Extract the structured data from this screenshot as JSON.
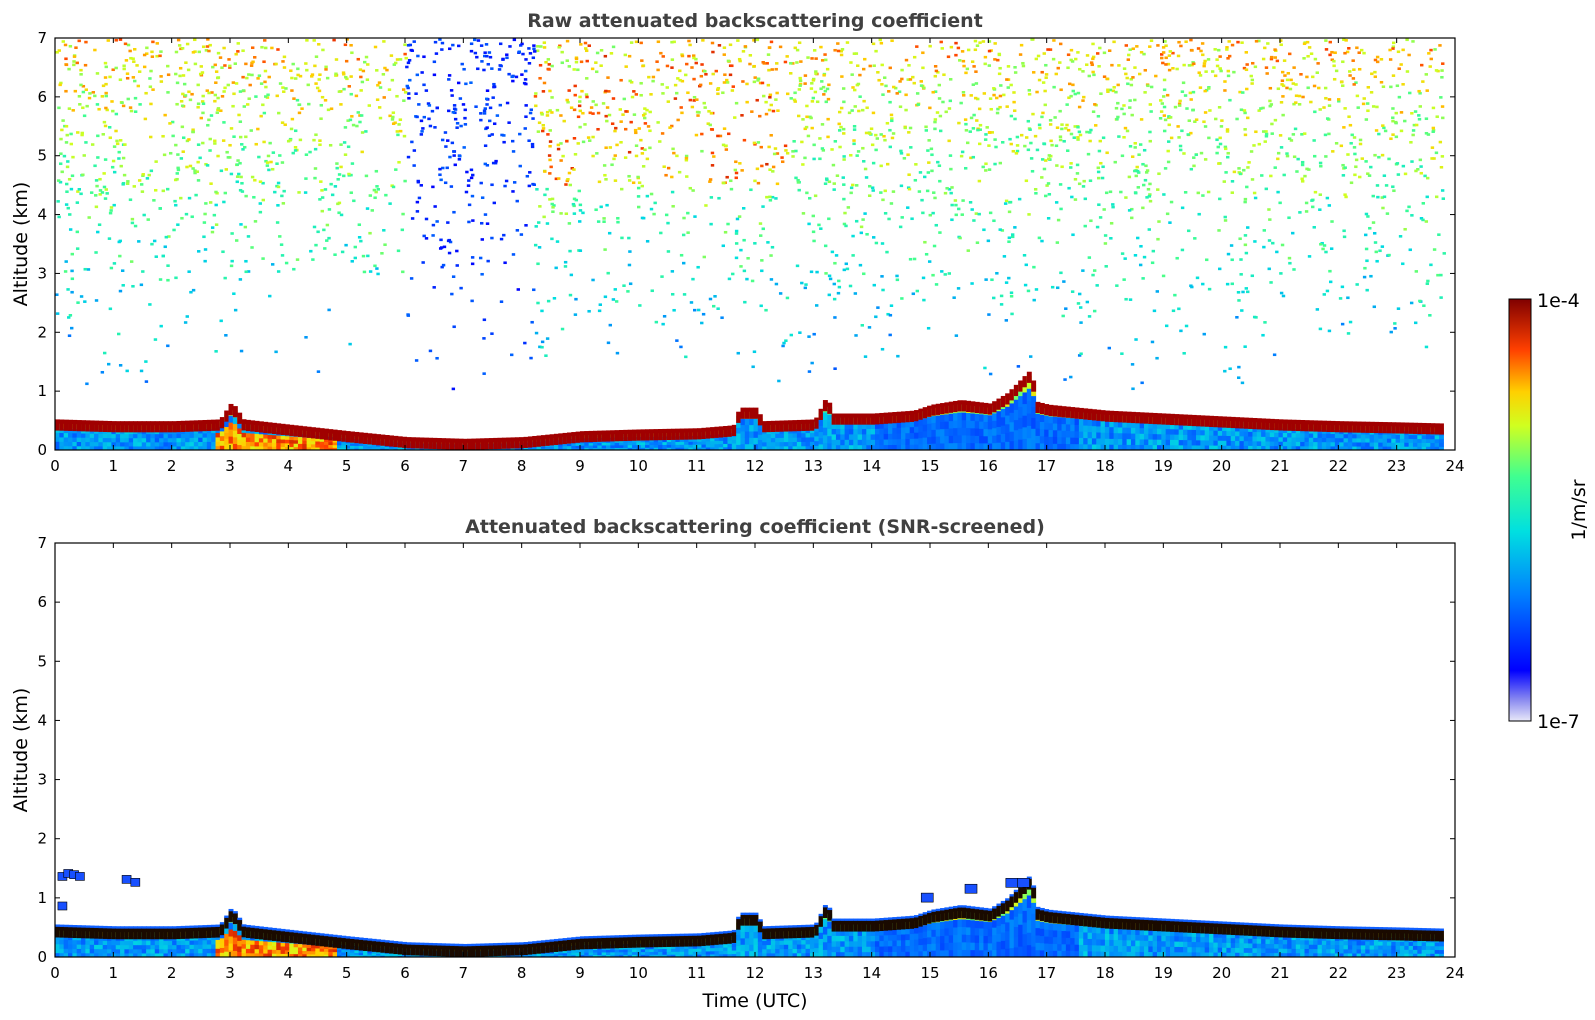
{
  "chart_data": [
    {
      "type": "heatmap",
      "title": "Raw attenuated backscattering coefficient",
      "xlabel": "",
      "ylabel": "Altitude (km)",
      "xlim": [
        0,
        24
      ],
      "ylim": [
        0,
        7
      ],
      "xticks": [
        0,
        1,
        2,
        3,
        4,
        5,
        6,
        7,
        8,
        9,
        10,
        11,
        12,
        13,
        14,
        15,
        16,
        17,
        18,
        19,
        20,
        21,
        22,
        23,
        24
      ],
      "yticks": [
        0,
        1,
        2,
        3,
        4,
        5,
        6,
        7
      ],
      "screened": false,
      "boundary_layer_top_km": [
        [
          0,
          0.45
        ],
        [
          1,
          0.42
        ],
        [
          2,
          0.42
        ],
        [
          2.8,
          0.45
        ],
        [
          3.0,
          0.75
        ],
        [
          3.2,
          0.45
        ],
        [
          4,
          0.36
        ],
        [
          5,
          0.25
        ],
        [
          6,
          0.15
        ],
        [
          7,
          0.12
        ],
        [
          8,
          0.15
        ],
        [
          9,
          0.25
        ],
        [
          10,
          0.28
        ],
        [
          11,
          0.3
        ],
        [
          11.6,
          0.35
        ],
        [
          11.7,
          0.65
        ],
        [
          12,
          0.65
        ],
        [
          12.1,
          0.42
        ],
        [
          13,
          0.45
        ],
        [
          13.2,
          0.85
        ],
        [
          13.3,
          0.55
        ],
        [
          14,
          0.55
        ],
        [
          14.7,
          0.6
        ],
        [
          15,
          0.7
        ],
        [
          15.5,
          0.78
        ],
        [
          16,
          0.72
        ],
        [
          16.3,
          0.9
        ],
        [
          16.7,
          1.3
        ],
        [
          16.8,
          0.75
        ],
        [
          17,
          0.7
        ],
        [
          18,
          0.6
        ],
        [
          19,
          0.55
        ],
        [
          20,
          0.5
        ],
        [
          21,
          0.45
        ],
        [
          22,
          0.42
        ],
        [
          23,
          0.4
        ],
        [
          23.8,
          0.38
        ]
      ],
      "colorbar": {
        "min_label": "1e-7",
        "max_label": "1e-4",
        "label": "1/m/sr",
        "colormap": "jet",
        "scale": "log"
      }
    },
    {
      "type": "heatmap",
      "title": "Attenuated backscattering coefficient (SNR-screened)",
      "xlabel": "Time (UTC)",
      "ylabel": "Altitude (km)",
      "xlim": [
        0,
        24
      ],
      "ylim": [
        0,
        7
      ],
      "xticks": [
        0,
        1,
        2,
        3,
        4,
        5,
        6,
        7,
        8,
        9,
        10,
        11,
        12,
        13,
        14,
        15,
        16,
        17,
        18,
        19,
        20,
        21,
        22,
        23,
        24
      ],
      "yticks": [
        0,
        1,
        2,
        3,
        4,
        5,
        6,
        7
      ],
      "screened": true,
      "boundary_layer_top_km": [
        [
          0,
          0.45
        ],
        [
          1,
          0.42
        ],
        [
          2,
          0.42
        ],
        [
          2.8,
          0.45
        ],
        [
          3.0,
          0.75
        ],
        [
          3.2,
          0.45
        ],
        [
          4,
          0.36
        ],
        [
          5,
          0.25
        ],
        [
          6,
          0.15
        ],
        [
          7,
          0.12
        ],
        [
          8,
          0.15
        ],
        [
          9,
          0.25
        ],
        [
          10,
          0.28
        ],
        [
          11,
          0.3
        ],
        [
          11.6,
          0.35
        ],
        [
          11.7,
          0.65
        ],
        [
          12,
          0.65
        ],
        [
          12.1,
          0.42
        ],
        [
          13,
          0.45
        ],
        [
          13.2,
          0.85
        ],
        [
          13.3,
          0.55
        ],
        [
          14,
          0.55
        ],
        [
          14.7,
          0.6
        ],
        [
          15,
          0.7
        ],
        [
          15.5,
          0.78
        ],
        [
          16,
          0.72
        ],
        [
          16.3,
          0.9
        ],
        [
          16.7,
          1.3
        ],
        [
          16.8,
          0.75
        ],
        [
          17,
          0.7
        ],
        [
          18,
          0.6
        ],
        [
          19,
          0.55
        ],
        [
          20,
          0.5
        ],
        [
          21,
          0.45
        ],
        [
          22,
          0.42
        ],
        [
          23,
          0.4
        ],
        [
          23.8,
          0.38
        ]
      ]
    }
  ],
  "colors": {
    "title": "#404040",
    "jet_low": "#00008f",
    "jet_high": "#800000"
  }
}
